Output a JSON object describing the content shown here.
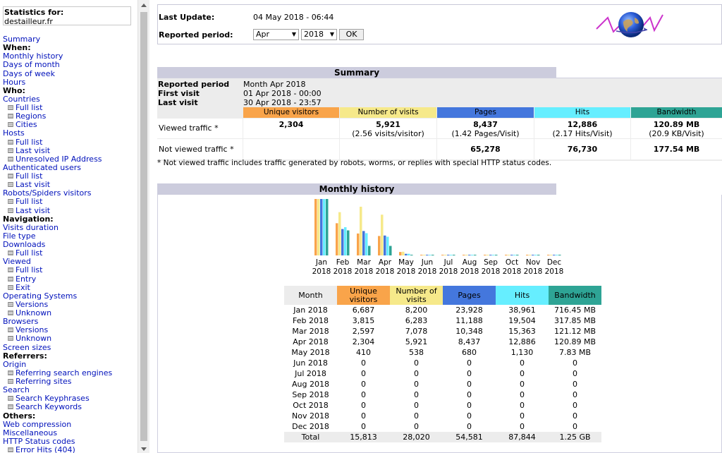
{
  "colors": {
    "unique_visitors": "#f9a44a",
    "visits": "#f6e98a",
    "pages": "#4477dd",
    "hits": "#66eeff",
    "bandwidth": "#2ea495",
    "section_title_bg": "#ccccdd",
    "link": "#0011bb"
  },
  "menu": {
    "stats_for_label": "Statistics for:",
    "site": "destailleur.fr",
    "items": [
      {
        "type": "link",
        "label": "Summary"
      },
      {
        "type": "heading",
        "label": "When:"
      },
      {
        "type": "link",
        "label": "Monthly history"
      },
      {
        "type": "link",
        "label": "Days of month"
      },
      {
        "type": "link",
        "label": "Days of week"
      },
      {
        "type": "link",
        "label": "Hours"
      },
      {
        "type": "heading",
        "label": "Who:"
      },
      {
        "type": "link",
        "label": "Countries"
      },
      {
        "type": "sub",
        "label": "Full list"
      },
      {
        "type": "sub",
        "label": "Regions"
      },
      {
        "type": "sub",
        "label": "Cities"
      },
      {
        "type": "link",
        "label": "Hosts"
      },
      {
        "type": "sub",
        "label": "Full list"
      },
      {
        "type": "sub",
        "label": "Last visit"
      },
      {
        "type": "sub",
        "label": "Unresolved IP Address"
      },
      {
        "type": "link",
        "label": "Authenticated users"
      },
      {
        "type": "sub",
        "label": "Full list"
      },
      {
        "type": "sub",
        "label": "Last visit"
      },
      {
        "type": "link",
        "label": "Robots/Spiders visitors"
      },
      {
        "type": "sub",
        "label": "Full list"
      },
      {
        "type": "sub",
        "label": "Last visit"
      },
      {
        "type": "heading",
        "label": "Navigation:"
      },
      {
        "type": "link",
        "label": "Visits duration"
      },
      {
        "type": "link",
        "label": "File type"
      },
      {
        "type": "link",
        "label": "Downloads"
      },
      {
        "type": "sub",
        "label": "Full list"
      },
      {
        "type": "link",
        "label": "Viewed"
      },
      {
        "type": "sub",
        "label": "Full list"
      },
      {
        "type": "sub",
        "label": "Entry"
      },
      {
        "type": "sub",
        "label": "Exit"
      },
      {
        "type": "link",
        "label": "Operating Systems"
      },
      {
        "type": "sub",
        "label": "Versions"
      },
      {
        "type": "sub",
        "label": "Unknown"
      },
      {
        "type": "link",
        "label": "Browsers"
      },
      {
        "type": "sub",
        "label": "Versions"
      },
      {
        "type": "sub",
        "label": "Unknown"
      },
      {
        "type": "link",
        "label": "Screen sizes"
      },
      {
        "type": "heading",
        "label": "Referrers:"
      },
      {
        "type": "link",
        "label": "Origin"
      },
      {
        "type": "sub",
        "label": "Referring search engines"
      },
      {
        "type": "sub",
        "label": "Referring sites"
      },
      {
        "type": "link",
        "label": "Search"
      },
      {
        "type": "sub",
        "label": "Search Keyphrases"
      },
      {
        "type": "sub",
        "label": "Search Keywords"
      },
      {
        "type": "heading",
        "label": "Others:"
      },
      {
        "type": "link",
        "label": "Web compression"
      },
      {
        "type": "link",
        "label": "Miscellaneous"
      },
      {
        "type": "link",
        "label": "HTTP Status codes"
      },
      {
        "type": "sub",
        "label": "Error Hits (404)"
      }
    ]
  },
  "top": {
    "last_update_label": "Last Update:",
    "last_update_value": "04 May 2018 - 06:44",
    "reported_period_label": "Reported period:",
    "month_select": "Apr",
    "year_select": "2018",
    "ok_label": "OK"
  },
  "summary": {
    "title": "Summary",
    "reported_period_label": "Reported period",
    "reported_period_value": "Month Apr 2018",
    "first_visit_label": "First visit",
    "first_visit_value": "01 Apr 2018 - 00:00",
    "last_visit_label": "Last visit",
    "last_visit_value": "30 Apr 2018 - 23:57",
    "headers": {
      "unique_visitors": "Unique visitors",
      "visits": "Number of visits",
      "pages": "Pages",
      "hits": "Hits",
      "bandwidth": "Bandwidth"
    },
    "viewed_label": "Viewed traffic *",
    "viewed": {
      "unique_visitors": "2,304",
      "visits": "5,921",
      "visits_sub": "(2.56 visits/visitor)",
      "pages": "8,437",
      "pages_sub": "(1.42 Pages/Visit)",
      "hits": "12,886",
      "hits_sub": "(2.17 Hits/Visit)",
      "bandwidth": "120.89 MB",
      "bandwidth_sub": "(20.9 KB/Visit)"
    },
    "not_viewed_label": "Not viewed traffic *",
    "not_viewed": {
      "pages": "65,278",
      "hits": "76,730",
      "bandwidth": "177.54 MB"
    },
    "footnote": "* Not viewed traffic includes traffic generated by robots, worms, or replies with special HTTP status codes."
  },
  "monthly": {
    "title": "Monthly history",
    "headers": {
      "month": "Month",
      "unique_visitors": "Unique visitors",
      "visits": "Number of visits",
      "pages": "Pages",
      "hits": "Hits",
      "bandwidth": "Bandwidth"
    },
    "total_label": "Total",
    "totals": {
      "unique_visitors": "15,813",
      "visits": "28,020",
      "pages": "54,581",
      "hits": "87,844",
      "bandwidth": "1.25 GB"
    }
  },
  "chart_data": {
    "type": "bar",
    "categories": [
      "Jan 2018",
      "Feb 2018",
      "Mar 2018",
      "Apr 2018",
      "May 2018",
      "Jun 2018",
      "Jul 2018",
      "Aug 2018",
      "Sep 2018",
      "Oct 2018",
      "Nov 2018",
      "Dec 2018"
    ],
    "axis_months": [
      "Jan",
      "Feb",
      "Mar",
      "Apr",
      "May",
      "Jun",
      "Jul",
      "Aug",
      "Sep",
      "Oct",
      "Nov",
      "Dec"
    ],
    "axis_year": "2018",
    "series": [
      {
        "name": "Unique visitors",
        "values": [
          6687,
          3815,
          2597,
          2304,
          410,
          0,
          0,
          0,
          0,
          0,
          0,
          0
        ],
        "labels": [
          "6,687",
          "3,815",
          "2,597",
          "2,304",
          "410",
          "0",
          "0",
          "0",
          "0",
          "0",
          "0",
          "0"
        ]
      },
      {
        "name": "Number of visits",
        "values": [
          8200,
          6283,
          7078,
          5921,
          538,
          0,
          0,
          0,
          0,
          0,
          0,
          0
        ],
        "labels": [
          "8,200",
          "6,283",
          "7,078",
          "5,921",
          "538",
          "0",
          "0",
          "0",
          "0",
          "0",
          "0",
          "0"
        ]
      },
      {
        "name": "Pages",
        "values": [
          23928,
          11188,
          10348,
          8437,
          680,
          0,
          0,
          0,
          0,
          0,
          0,
          0
        ],
        "labels": [
          "23,928",
          "11,188",
          "10,348",
          "8,437",
          "680",
          "0",
          "0",
          "0",
          "0",
          "0",
          "0",
          "0"
        ]
      },
      {
        "name": "Hits",
        "values": [
          38961,
          19504,
          15363,
          12886,
          1130,
          0,
          0,
          0,
          0,
          0,
          0,
          0
        ],
        "labels": [
          "38,961",
          "19,504",
          "15,363",
          "12,886",
          "1,130",
          "0",
          "0",
          "0",
          "0",
          "0",
          "0",
          "0"
        ]
      },
      {
        "name": "Bandwidth",
        "values": [
          716.45,
          317.85,
          121.12,
          120.89,
          7.83,
          0,
          0,
          0,
          0,
          0,
          0,
          0
        ],
        "labels": [
          "716.45 MB",
          "317.85 MB",
          "121.12 MB",
          "120.89 MB",
          "7.83 MB",
          "0",
          "0",
          "0",
          "0",
          "0",
          "0",
          "0"
        ],
        "unit": "MB"
      }
    ],
    "legend": "none",
    "grid": false
  }
}
